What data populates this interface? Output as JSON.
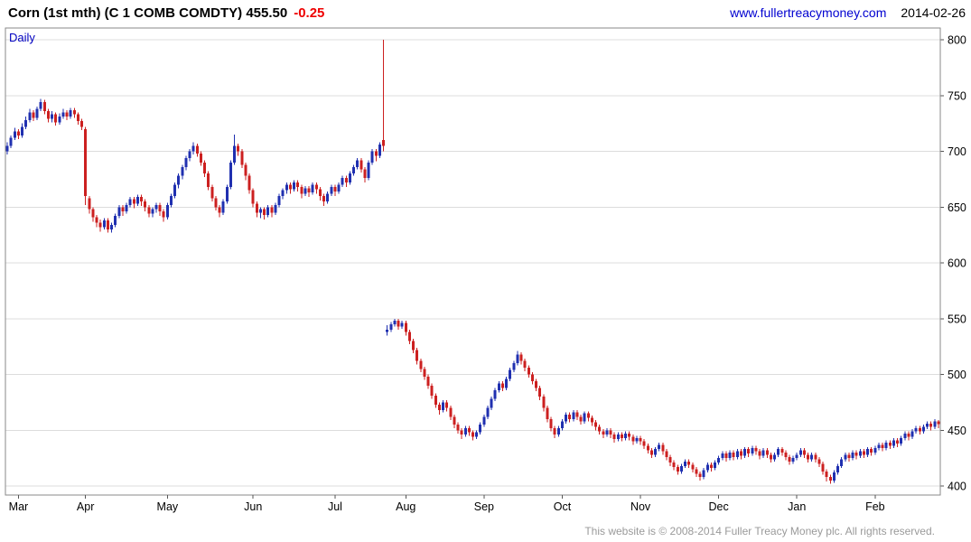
{
  "header": {
    "title": "Corn (1st mth) (C 1 COMB COMDTY) 455.50",
    "change": "-0.25",
    "link": "www.fullertreacymoney.com",
    "date": "2014-02-26"
  },
  "chart": {
    "frequency_label": "Daily"
  },
  "footer": {
    "copyright": "This website is © 2008-2014 Fuller Treacy Money plc. All rights reserved."
  },
  "chart_data": {
    "type": "candlestick",
    "title": "Corn (1st mth) (C 1 COMB COMDTY)",
    "frequency": "Daily",
    "last_price": 455.5,
    "change": -0.25,
    "grid": "horizontal",
    "legend": "none",
    "colors": {
      "up": "#2030b0",
      "down": "#cc2020",
      "grid": "#dcdcdc",
      "frame": "#8a8a8a",
      "axis_text": "#000000"
    },
    "y_axis": {
      "position": "right",
      "min": 400,
      "max": 800,
      "tick_step": 50,
      "ticks": [
        400,
        450,
        500,
        550,
        600,
        650,
        700,
        750,
        800
      ]
    },
    "x_axis": {
      "labels": [
        "Mar",
        "Apr",
        "May",
        "Jun",
        "Jul",
        "Aug",
        "Sep",
        "Oct",
        "Nov",
        "Dec",
        "Jan",
        "Feb"
      ],
      "tick_indices": [
        3,
        21,
        43,
        66,
        88,
        107,
        128,
        149,
        170,
        191,
        212,
        233
      ]
    },
    "ohlc_format": [
      "open",
      "high",
      "low",
      "close"
    ],
    "ohlc": [
      [
        700,
        708,
        697,
        705
      ],
      [
        705,
        714,
        703,
        712
      ],
      [
        712,
        721,
        710,
        718
      ],
      [
        718,
        720,
        711,
        714
      ],
      [
        714,
        725,
        712,
        722
      ],
      [
        722,
        731,
        720,
        728
      ],
      [
        728,
        738,
        726,
        735
      ],
      [
        735,
        737,
        727,
        730
      ],
      [
        730,
        740,
        728,
        738
      ],
      [
        738,
        747,
        736,
        744
      ],
      [
        744,
        746,
        733,
        736
      ],
      [
        736,
        738,
        726,
        729
      ],
      [
        729,
        736,
        726,
        733
      ],
      [
        733,
        735,
        723,
        726
      ],
      [
        726,
        734,
        724,
        731
      ],
      [
        731,
        738,
        729,
        735
      ],
      [
        735,
        737,
        728,
        731
      ],
      [
        731,
        739,
        729,
        737
      ],
      [
        737,
        739,
        730,
        733
      ],
      [
        733,
        735,
        724,
        727
      ],
      [
        727,
        729,
        719,
        722
      ],
      [
        720,
        722,
        652,
        660
      ],
      [
        658,
        660,
        644,
        648
      ],
      [
        648,
        650,
        637,
        641
      ],
      [
        641,
        643,
        632,
        636
      ],
      [
        636,
        639,
        628,
        632
      ],
      [
        632,
        640,
        630,
        638
      ],
      [
        638,
        640,
        627,
        630
      ],
      [
        630,
        636,
        627,
        634
      ],
      [
        634,
        644,
        632,
        642
      ],
      [
        642,
        652,
        640,
        650
      ],
      [
        650,
        652,
        642,
        646
      ],
      [
        646,
        654,
        644,
        652
      ],
      [
        652,
        659,
        650,
        657
      ],
      [
        657,
        659,
        649,
        653
      ],
      [
        653,
        661,
        651,
        659
      ],
      [
        659,
        661,
        651,
        655
      ],
      [
        655,
        657,
        646,
        650
      ],
      [
        650,
        652,
        641,
        644
      ],
      [
        644,
        650,
        641,
        648
      ],
      [
        648,
        654,
        645,
        652
      ],
      [
        652,
        654,
        642,
        646
      ],
      [
        646,
        648,
        637,
        641
      ],
      [
        641,
        654,
        639,
        652
      ],
      [
        652,
        662,
        650,
        660
      ],
      [
        660,
        672,
        658,
        670
      ],
      [
        670,
        680,
        667,
        678
      ],
      [
        678,
        688,
        675,
        686
      ],
      [
        686,
        696,
        683,
        694
      ],
      [
        694,
        702,
        691,
        700
      ],
      [
        700,
        708,
        697,
        705
      ],
      [
        705,
        707,
        695,
        698
      ],
      [
        698,
        700,
        687,
        690
      ],
      [
        690,
        692,
        677,
        680
      ],
      [
        680,
        682,
        665,
        668
      ],
      [
        668,
        670,
        655,
        658
      ],
      [
        658,
        660,
        647,
        650
      ],
      [
        650,
        652,
        641,
        645
      ],
      [
        645,
        657,
        643,
        655
      ],
      [
        655,
        670,
        653,
        668
      ],
      [
        668,
        692,
        666,
        690
      ],
      [
        690,
        715,
        688,
        705
      ],
      [
        705,
        707,
        696,
        700
      ],
      [
        700,
        702,
        685,
        688
      ],
      [
        688,
        690,
        674,
        678
      ],
      [
        678,
        680,
        662,
        665
      ],
      [
        665,
        667,
        650,
        653
      ],
      [
        653,
        655,
        641,
        645
      ],
      [
        645,
        650,
        640,
        648
      ],
      [
        648,
        650,
        639,
        643
      ],
      [
        643,
        652,
        641,
        650
      ],
      [
        650,
        652,
        641,
        645
      ],
      [
        645,
        654,
        643,
        652
      ],
      [
        652,
        662,
        650,
        660
      ],
      [
        660,
        667,
        657,
        665
      ],
      [
        665,
        672,
        662,
        670
      ],
      [
        670,
        672,
        662,
        666
      ],
      [
        666,
        674,
        664,
        672
      ],
      [
        672,
        674,
        664,
        668
      ],
      [
        668,
        670,
        658,
        662
      ],
      [
        662,
        669,
        660,
        667
      ],
      [
        667,
        669,
        659,
        663
      ],
      [
        663,
        672,
        661,
        670
      ],
      [
        670,
        672,
        662,
        666
      ],
      [
        666,
        668,
        656,
        660
      ],
      [
        660,
        662,
        651,
        655
      ],
      [
        655,
        664,
        653,
        662
      ],
      [
        662,
        670,
        660,
        668
      ],
      [
        668,
        670,
        660,
        664
      ],
      [
        664,
        672,
        662,
        670
      ],
      [
        670,
        678,
        668,
        676
      ],
      [
        676,
        678,
        668,
        672
      ],
      [
        672,
        682,
        670,
        680
      ],
      [
        680,
        688,
        678,
        686
      ],
      [
        686,
        694,
        684,
        692
      ],
      [
        692,
        694,
        681,
        684
      ],
      [
        684,
        686,
        672,
        676
      ],
      [
        676,
        692,
        674,
        690
      ],
      [
        690,
        702,
        688,
        700
      ],
      [
        700,
        702,
        691,
        696
      ],
      [
        696,
        708,
        694,
        706
      ],
      [
        710,
        800,
        700,
        705
      ],
      [
        538,
        544,
        535,
        540
      ],
      [
        540,
        547,
        538,
        545
      ],
      [
        545,
        550,
        543,
        548
      ],
      [
        548,
        550,
        540,
        543
      ],
      [
        543,
        548,
        541,
        546
      ],
      [
        546,
        548,
        535,
        538
      ],
      [
        538,
        540,
        527,
        530
      ],
      [
        530,
        532,
        519,
        522
      ],
      [
        522,
        524,
        509,
        512
      ],
      [
        512,
        514,
        502,
        505
      ],
      [
        505,
        507,
        495,
        498
      ],
      [
        498,
        500,
        487,
        490
      ],
      [
        490,
        492,
        478,
        481
      ],
      [
        481,
        483,
        470,
        473
      ],
      [
        473,
        475,
        464,
        468
      ],
      [
        468,
        477,
        466,
        475
      ],
      [
        475,
        477,
        467,
        470
      ],
      [
        470,
        472,
        459,
        462
      ],
      [
        462,
        464,
        452,
        455
      ],
      [
        455,
        457,
        447,
        450
      ],
      [
        450,
        452,
        442,
        446
      ],
      [
        446,
        454,
        444,
        452
      ],
      [
        452,
        454,
        445,
        448
      ],
      [
        448,
        450,
        441,
        444
      ],
      [
        444,
        450,
        442,
        448
      ],
      [
        448,
        457,
        446,
        455
      ],
      [
        455,
        464,
        453,
        462
      ],
      [
        462,
        472,
        460,
        470
      ],
      [
        470,
        480,
        468,
        478
      ],
      [
        478,
        488,
        476,
        486
      ],
      [
        486,
        494,
        484,
        492
      ],
      [
        492,
        494,
        485,
        488
      ],
      [
        488,
        498,
        486,
        496
      ],
      [
        496,
        506,
        494,
        504
      ],
      [
        504,
        512,
        502,
        510
      ],
      [
        510,
        521,
        508,
        518
      ],
      [
        518,
        520,
        509,
        512
      ],
      [
        512,
        514,
        503,
        506
      ],
      [
        506,
        508,
        497,
        500
      ],
      [
        500,
        502,
        491,
        494
      ],
      [
        494,
        496,
        485,
        488
      ],
      [
        488,
        490,
        477,
        480
      ],
      [
        480,
        482,
        467,
        470
      ],
      [
        470,
        472,
        457,
        460
      ],
      [
        460,
        462,
        449,
        452
      ],
      [
        452,
        454,
        443,
        446
      ],
      [
        446,
        454,
        444,
        452
      ],
      [
        452,
        460,
        450,
        458
      ],
      [
        458,
        466,
        456,
        464
      ],
      [
        464,
        466,
        457,
        460
      ],
      [
        460,
        468,
        458,
        466
      ],
      [
        466,
        468,
        459,
        462
      ],
      [
        462,
        464,
        455,
        458
      ],
      [
        458,
        467,
        456,
        465
      ],
      [
        465,
        467,
        458,
        461
      ],
      [
        461,
        463,
        454,
        457
      ],
      [
        457,
        459,
        450,
        453
      ],
      [
        453,
        455,
        446,
        449
      ],
      [
        449,
        451,
        443,
        446
      ],
      [
        446,
        452,
        444,
        450
      ],
      [
        450,
        452,
        443,
        446
      ],
      [
        446,
        448,
        439,
        442
      ],
      [
        442,
        448,
        440,
        446
      ],
      [
        446,
        448,
        440,
        443
      ],
      [
        443,
        449,
        441,
        447
      ],
      [
        447,
        449,
        441,
        444
      ],
      [
        444,
        446,
        437,
        440
      ],
      [
        440,
        445,
        438,
        443
      ],
      [
        443,
        445,
        437,
        440
      ],
      [
        440,
        442,
        433,
        436
      ],
      [
        436,
        438,
        429,
        432
      ],
      [
        432,
        434,
        425,
        428
      ],
      [
        428,
        435,
        426,
        433
      ],
      [
        433,
        439,
        431,
        437
      ],
      [
        437,
        439,
        428,
        431
      ],
      [
        431,
        433,
        423,
        426
      ],
      [
        426,
        428,
        418,
        421
      ],
      [
        421,
        423,
        414,
        417
      ],
      [
        417,
        419,
        410,
        413
      ],
      [
        413,
        420,
        411,
        418
      ],
      [
        418,
        424,
        416,
        422
      ],
      [
        422,
        424,
        416,
        419
      ],
      [
        419,
        421,
        412,
        415
      ],
      [
        415,
        417,
        408,
        411
      ],
      [
        411,
        413,
        405,
        408
      ],
      [
        408,
        416,
        406,
        414
      ],
      [
        414,
        421,
        412,
        419
      ],
      [
        419,
        421,
        413,
        416
      ],
      [
        416,
        423,
        414,
        421
      ],
      [
        421,
        427,
        419,
        425
      ],
      [
        425,
        431,
        423,
        429
      ],
      [
        429,
        431,
        422,
        425
      ],
      [
        425,
        432,
        423,
        430
      ],
      [
        430,
        432,
        423,
        426
      ],
      [
        426,
        433,
        424,
        431
      ],
      [
        431,
        433,
        424,
        427
      ],
      [
        427,
        435,
        425,
        433
      ],
      [
        433,
        435,
        426,
        429
      ],
      [
        429,
        436,
        427,
        434
      ],
      [
        434,
        436,
        428,
        431
      ],
      [
        431,
        433,
        424,
        427
      ],
      [
        427,
        434,
        425,
        432
      ],
      [
        432,
        434,
        425,
        428
      ],
      [
        428,
        430,
        421,
        424
      ],
      [
        424,
        430,
        422,
        428
      ],
      [
        428,
        435,
        426,
        433
      ],
      [
        433,
        435,
        427,
        430
      ],
      [
        430,
        432,
        423,
        426
      ],
      [
        426,
        428,
        419,
        422
      ],
      [
        422,
        427,
        420,
        425
      ],
      [
        425,
        430,
        423,
        428
      ],
      [
        428,
        434,
        426,
        432
      ],
      [
        432,
        434,
        425,
        428
      ],
      [
        428,
        430,
        421,
        424
      ],
      [
        424,
        430,
        422,
        428
      ],
      [
        428,
        430,
        421,
        424
      ],
      [
        424,
        426,
        417,
        420
      ],
      [
        420,
        422,
        410,
        413
      ],
      [
        413,
        415,
        404,
        408
      ],
      [
        408,
        410,
        402,
        405
      ],
      [
        405,
        414,
        403,
        412
      ],
      [
        412,
        420,
        410,
        418
      ],
      [
        418,
        426,
        416,
        424
      ],
      [
        424,
        430,
        422,
        428
      ],
      [
        428,
        430,
        422,
        425
      ],
      [
        425,
        432,
        423,
        430
      ],
      [
        430,
        432,
        424,
        427
      ],
      [
        427,
        433,
        425,
        431
      ],
      [
        431,
        433,
        425,
        428
      ],
      [
        428,
        435,
        426,
        433
      ],
      [
        433,
        435,
        427,
        430
      ],
      [
        430,
        436,
        428,
        434
      ],
      [
        434,
        439,
        432,
        437
      ],
      [
        437,
        439,
        431,
        434
      ],
      [
        434,
        441,
        432,
        439
      ],
      [
        439,
        441,
        433,
        436
      ],
      [
        436,
        443,
        434,
        441
      ],
      [
        441,
        443,
        435,
        438
      ],
      [
        438,
        445,
        436,
        443
      ],
      [
        443,
        449,
        441,
        447
      ],
      [
        447,
        449,
        441,
        444
      ],
      [
        444,
        451,
        442,
        449
      ],
      [
        449,
        454,
        447,
        452
      ],
      [
        452,
        454,
        446,
        449
      ],
      [
        449,
        455,
        447,
        453
      ],
      [
        453,
        458,
        451,
        456
      ],
      [
        456,
        458,
        450,
        453
      ],
      [
        453,
        460,
        451,
        458
      ],
      [
        458,
        459,
        452,
        455.5
      ]
    ]
  }
}
